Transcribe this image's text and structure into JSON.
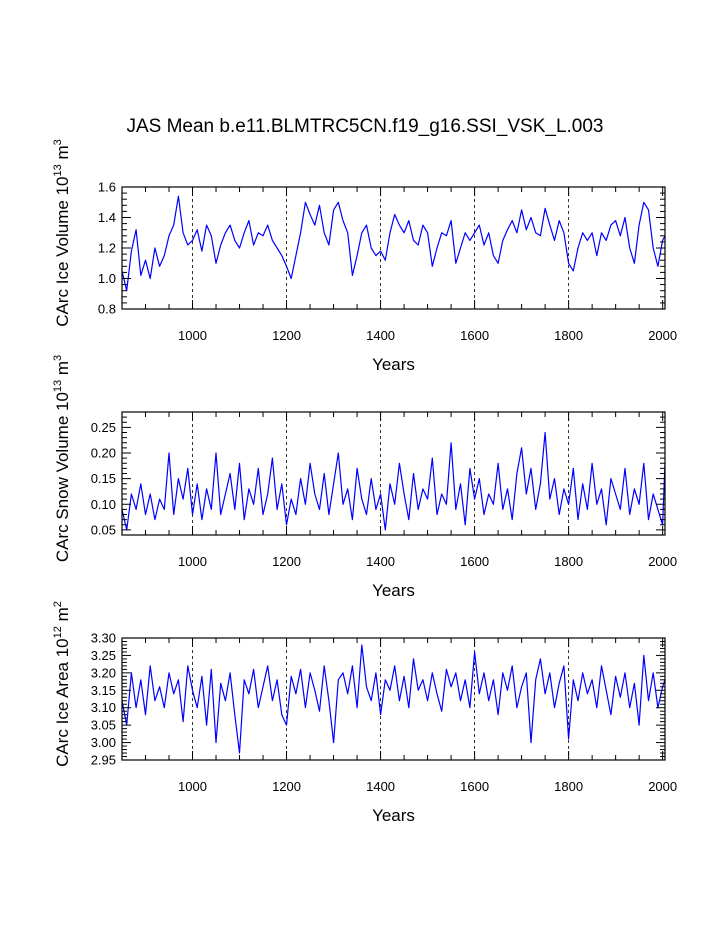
{
  "title": "JAS Mean b.e11.BLMTRC5CN.f19_g16.SSI_VSK_L.003",
  "chart_data": [
    {
      "type": "line",
      "name": "ice-volume",
      "xlabel": "Years",
      "ylabel_parts": {
        "main": "CArc Ice Volume 10",
        "exp": "13",
        "unit": " m",
        "unit_exp": "3"
      },
      "xlim": [
        850,
        2005
      ],
      "ylim": [
        0.8,
        1.6
      ],
      "xticks": [
        1000,
        1200,
        1400,
        1600,
        1800,
        2000
      ],
      "yticks": [
        0.8,
        1.0,
        1.2,
        1.4,
        1.6
      ],
      "ytick_labels": [
        "0.8",
        "1.0",
        "1.2",
        "1.4",
        "1.6"
      ],
      "xgrid": [
        1000,
        1200,
        1400,
        1600,
        1800
      ],
      "series": [
        {
          "name": "CArc Ice Volume",
          "color": "#0000ff",
          "x": [
            850,
            860,
            870,
            880,
            890,
            900,
            910,
            920,
            930,
            940,
            950,
            960,
            970,
            980,
            990,
            1000,
            1010,
            1020,
            1030,
            1040,
            1050,
            1060,
            1070,
            1080,
            1090,
            1100,
            1110,
            1120,
            1130,
            1140,
            1150,
            1160,
            1170,
            1180,
            1190,
            1200,
            1210,
            1220,
            1230,
            1240,
            1250,
            1260,
            1270,
            1280,
            1290,
            1300,
            1310,
            1320,
            1330,
            1340,
            1350,
            1360,
            1370,
            1380,
            1390,
            1400,
            1410,
            1420,
            1430,
            1440,
            1450,
            1460,
            1470,
            1480,
            1490,
            1500,
            1510,
            1520,
            1530,
            1540,
            1550,
            1560,
            1570,
            1580,
            1590,
            1600,
            1610,
            1620,
            1630,
            1640,
            1650,
            1660,
            1670,
            1680,
            1690,
            1700,
            1710,
            1720,
            1730,
            1740,
            1750,
            1760,
            1770,
            1780,
            1790,
            1800,
            1810,
            1820,
            1830,
            1840,
            1850,
            1860,
            1870,
            1880,
            1890,
            1900,
            1910,
            1920,
            1930,
            1940,
            1950,
            1960,
            1970,
            1980,
            1990,
            2000,
            2005
          ],
          "y": [
            1.05,
            0.92,
            1.18,
            1.32,
            1.02,
            1.12,
            1.0,
            1.2,
            1.08,
            1.15,
            1.28,
            1.35,
            1.54,
            1.3,
            1.22,
            1.25,
            1.32,
            1.18,
            1.35,
            1.28,
            1.1,
            1.22,
            1.3,
            1.35,
            1.25,
            1.2,
            1.3,
            1.38,
            1.22,
            1.3,
            1.28,
            1.35,
            1.25,
            1.2,
            1.15,
            1.08,
            1.0,
            1.15,
            1.3,
            1.5,
            1.42,
            1.35,
            1.48,
            1.3,
            1.22,
            1.45,
            1.5,
            1.38,
            1.3,
            1.02,
            1.15,
            1.3,
            1.35,
            1.2,
            1.15,
            1.18,
            1.12,
            1.3,
            1.42,
            1.35,
            1.3,
            1.38,
            1.25,
            1.22,
            1.35,
            1.3,
            1.08,
            1.2,
            1.3,
            1.28,
            1.38,
            1.1,
            1.2,
            1.3,
            1.25,
            1.3,
            1.35,
            1.22,
            1.3,
            1.15,
            1.1,
            1.25,
            1.32,
            1.38,
            1.3,
            1.45,
            1.32,
            1.4,
            1.3,
            1.28,
            1.46,
            1.35,
            1.25,
            1.38,
            1.3,
            1.1,
            1.05,
            1.2,
            1.3,
            1.25,
            1.3,
            1.15,
            1.3,
            1.25,
            1.35,
            1.38,
            1.28,
            1.4,
            1.2,
            1.1,
            1.35,
            1.5,
            1.45,
            1.2,
            1.08,
            1.25,
            1.28
          ]
        }
      ]
    },
    {
      "type": "line",
      "name": "snow-volume",
      "xlabel": "Years",
      "ylabel_parts": {
        "main": "CArc Snow Volume 10",
        "exp": "13",
        "unit": " m",
        "unit_exp": "3"
      },
      "xlim": [
        850,
        2005
      ],
      "ylim": [
        0.04,
        0.28
      ],
      "xticks": [
        1000,
        1200,
        1400,
        1600,
        1800,
        2000
      ],
      "yticks": [
        0.05,
        0.1,
        0.15,
        0.2,
        0.25
      ],
      "ytick_labels": [
        "0.05",
        "0.10",
        "0.15",
        "0.20",
        "0.25"
      ],
      "xgrid": [
        1000,
        1200,
        1400,
        1600,
        1800
      ],
      "series": [
        {
          "name": "CArc Snow Volume",
          "color": "#0000ff",
          "x": [
            850,
            860,
            870,
            880,
            890,
            900,
            910,
            920,
            930,
            940,
            950,
            960,
            970,
            980,
            990,
            1000,
            1010,
            1020,
            1030,
            1040,
            1050,
            1060,
            1070,
            1080,
            1090,
            1100,
            1110,
            1120,
            1130,
            1140,
            1150,
            1160,
            1170,
            1180,
            1190,
            1200,
            1210,
            1220,
            1230,
            1240,
            1250,
            1260,
            1270,
            1280,
            1290,
            1300,
            1310,
            1320,
            1330,
            1340,
            1350,
            1360,
            1370,
            1380,
            1390,
            1400,
            1410,
            1420,
            1430,
            1440,
            1450,
            1460,
            1470,
            1480,
            1490,
            1500,
            1510,
            1520,
            1530,
            1540,
            1550,
            1560,
            1570,
            1580,
            1590,
            1600,
            1610,
            1620,
            1630,
            1640,
            1650,
            1660,
            1670,
            1680,
            1690,
            1700,
            1710,
            1720,
            1730,
            1740,
            1750,
            1760,
            1770,
            1780,
            1790,
            1800,
            1810,
            1820,
            1830,
            1840,
            1850,
            1860,
            1870,
            1880,
            1890,
            1900,
            1910,
            1920,
            1930,
            1940,
            1950,
            1960,
            1970,
            1980,
            1990,
            2000,
            2005
          ],
          "y": [
            0.09,
            0.05,
            0.12,
            0.09,
            0.14,
            0.08,
            0.12,
            0.07,
            0.11,
            0.09,
            0.2,
            0.08,
            0.15,
            0.11,
            0.17,
            0.08,
            0.14,
            0.07,
            0.13,
            0.09,
            0.2,
            0.08,
            0.12,
            0.16,
            0.09,
            0.18,
            0.07,
            0.13,
            0.1,
            0.17,
            0.08,
            0.12,
            0.19,
            0.09,
            0.14,
            0.06,
            0.11,
            0.08,
            0.15,
            0.1,
            0.18,
            0.12,
            0.09,
            0.16,
            0.08,
            0.14,
            0.2,
            0.1,
            0.13,
            0.07,
            0.17,
            0.11,
            0.08,
            0.15,
            0.09,
            0.12,
            0.05,
            0.14,
            0.1,
            0.18,
            0.12,
            0.07,
            0.16,
            0.09,
            0.13,
            0.11,
            0.19,
            0.08,
            0.12,
            0.1,
            0.22,
            0.09,
            0.14,
            0.06,
            0.17,
            0.11,
            0.15,
            0.08,
            0.12,
            0.1,
            0.18,
            0.09,
            0.13,
            0.07,
            0.16,
            0.21,
            0.12,
            0.17,
            0.09,
            0.14,
            0.24,
            0.11,
            0.15,
            0.08,
            0.13,
            0.1,
            0.17,
            0.07,
            0.14,
            0.09,
            0.18,
            0.1,
            0.13,
            0.06,
            0.15,
            0.12,
            0.09,
            0.17,
            0.08,
            0.13,
            0.1,
            0.18,
            0.07,
            0.12,
            0.09,
            0.06,
            0.18
          ]
        }
      ]
    },
    {
      "type": "line",
      "name": "ice-area",
      "xlabel": "Years",
      "ylabel_parts": {
        "main": "CArc Ice Area 10",
        "exp": "12",
        "unit": " m",
        "unit_exp": "2"
      },
      "xlim": [
        850,
        2005
      ],
      "ylim": [
        2.95,
        3.3
      ],
      "xticks": [
        1000,
        1200,
        1400,
        1600,
        1800,
        2000
      ],
      "yticks": [
        2.95,
        3.0,
        3.05,
        3.1,
        3.15,
        3.2,
        3.25,
        3.3
      ],
      "ytick_labels": [
        "2.95",
        "3.00",
        "3.05",
        "3.10",
        "3.15",
        "3.20",
        "3.25",
        "3.30"
      ],
      "xgrid": [
        1000,
        1200,
        1400,
        1600,
        1800
      ],
      "series": [
        {
          "name": "CArc Ice Area",
          "color": "#0000ff",
          "x": [
            850,
            860,
            870,
            880,
            890,
            900,
            910,
            920,
            930,
            940,
            950,
            960,
            970,
            980,
            990,
            1000,
            1010,
            1020,
            1030,
            1040,
            1050,
            1060,
            1070,
            1080,
            1090,
            1100,
            1110,
            1120,
            1130,
            1140,
            1150,
            1160,
            1170,
            1180,
            1190,
            1200,
            1210,
            1220,
            1230,
            1240,
            1250,
            1260,
            1270,
            1280,
            1290,
            1300,
            1310,
            1320,
            1330,
            1340,
            1350,
            1360,
            1370,
            1380,
            1390,
            1400,
            1410,
            1420,
            1430,
            1440,
            1450,
            1460,
            1470,
            1480,
            1490,
            1500,
            1510,
            1520,
            1530,
            1540,
            1550,
            1560,
            1570,
            1580,
            1590,
            1600,
            1610,
            1620,
            1630,
            1640,
            1650,
            1660,
            1670,
            1680,
            1690,
            1700,
            1710,
            1720,
            1730,
            1740,
            1750,
            1760,
            1770,
            1780,
            1790,
            1800,
            1810,
            1820,
            1830,
            1840,
            1850,
            1860,
            1870,
            1880,
            1890,
            1900,
            1910,
            1920,
            1930,
            1940,
            1950,
            1960,
            1970,
            1980,
            1990,
            2000,
            2005
          ],
          "y": [
            3.12,
            3.05,
            3.2,
            3.1,
            3.18,
            3.08,
            3.22,
            3.12,
            3.16,
            3.1,
            3.2,
            3.14,
            3.18,
            3.06,
            3.22,
            3.15,
            3.1,
            3.19,
            3.05,
            3.21,
            3.0,
            3.17,
            3.12,
            3.2,
            3.08,
            2.97,
            3.18,
            3.14,
            3.21,
            3.1,
            3.16,
            3.22,
            3.12,
            3.18,
            3.08,
            3.05,
            3.19,
            3.14,
            3.21,
            3.1,
            3.2,
            3.15,
            3.09,
            3.22,
            3.12,
            3.0,
            3.18,
            3.2,
            3.14,
            3.22,
            3.1,
            3.28,
            3.16,
            3.12,
            3.2,
            3.08,
            3.18,
            3.15,
            3.22,
            3.12,
            3.19,
            3.1,
            3.24,
            3.15,
            3.18,
            3.12,
            3.2,
            3.14,
            3.09,
            3.21,
            3.16,
            3.2,
            3.12,
            3.18,
            3.1,
            3.26,
            3.14,
            3.2,
            3.12,
            3.18,
            3.08,
            3.2,
            3.15,
            3.22,
            3.1,
            3.16,
            3.2,
            3.0,
            3.18,
            3.24,
            3.14,
            3.2,
            3.1,
            3.17,
            3.22,
            3.01,
            3.18,
            3.12,
            3.2,
            3.14,
            3.18,
            3.1,
            3.22,
            3.15,
            3.08,
            3.19,
            3.13,
            3.2,
            3.1,
            3.17,
            3.05,
            3.25,
            3.12,
            3.2,
            3.1,
            3.16,
            3.18
          ]
        }
      ]
    }
  ]
}
